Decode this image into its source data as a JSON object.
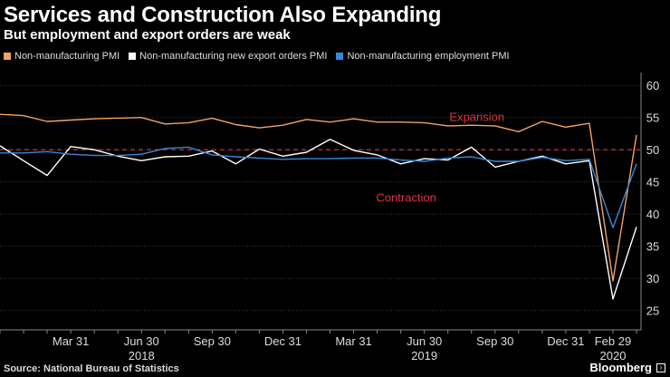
{
  "header": {
    "title": "Services and Construction Also Expanding",
    "subtitle": "But employment and export orders are weak"
  },
  "footer": {
    "source": "Source: National Bureau of Statistics",
    "brand": "Bloomberg"
  },
  "chart_data": {
    "type": "line",
    "title": "Services and Construction Also Expanding",
    "subtitle": "But employment and export orders are weak",
    "ylim": [
      22,
      62
    ],
    "yticks": [
      25,
      30,
      35,
      40,
      45,
      50,
      55,
      60
    ],
    "y_axis_position": "right",
    "grid": true,
    "legend_position": "top-left",
    "reference_line": {
      "y": 50,
      "color": "#e0343f",
      "style": "dashed"
    },
    "annotations": [
      {
        "text": "Expansion",
        "x": "2019-09",
        "y": 55,
        "color": "#e0343f"
      },
      {
        "text": "Contraction",
        "x": "2019-06",
        "y": 42.5,
        "color": "#e0343f"
      }
    ],
    "x": [
      "2017-12",
      "2018-01",
      "2018-02",
      "2018-03",
      "2018-04",
      "2018-05",
      "2018-06",
      "2018-07",
      "2018-08",
      "2018-09",
      "2018-10",
      "2018-11",
      "2018-12",
      "2019-01",
      "2019-02",
      "2019-03",
      "2019-04",
      "2019-05",
      "2019-06",
      "2019-07",
      "2019-08",
      "2019-09",
      "2019-10",
      "2019-11",
      "2019-12",
      "2020-01",
      "2020-02",
      "2020-03"
    ],
    "x_ticks": [
      {
        "x": "2018-03",
        "label": "Mar 31"
      },
      {
        "x": "2018-06",
        "label": "Jun 30"
      },
      {
        "x": "2018-09",
        "label": "Sep 30"
      },
      {
        "x": "2018-12",
        "label": "Dec 31"
      },
      {
        "x": "2019-03",
        "label": "Mar 31"
      },
      {
        "x": "2019-06",
        "label": "Jun 30"
      },
      {
        "x": "2019-09",
        "label": "Sep 30"
      },
      {
        "x": "2019-12",
        "label": "Dec 31"
      },
      {
        "x": "2020-02",
        "label": "Feb 29"
      }
    ],
    "year_labels": [
      {
        "x": "2018-06",
        "label": "2018"
      },
      {
        "x": "2019-06",
        "label": "2019"
      },
      {
        "x": "2020-02",
        "label": "2020"
      }
    ],
    "series": [
      {
        "name": "Non-manufacturing PMI",
        "color": "#f4a261",
        "values": [
          55.5,
          55.3,
          54.4,
          54.6,
          54.8,
          54.9,
          55.0,
          54.0,
          54.2,
          54.9,
          53.9,
          53.4,
          53.8,
          54.7,
          54.3,
          54.8,
          54.3,
          54.3,
          54.2,
          53.7,
          53.8,
          53.7,
          52.8,
          54.4,
          53.5,
          54.1,
          29.6,
          52.3
        ]
      },
      {
        "name": "Non-manufacturing new export orders PMI",
        "color": "#ffffff",
        "values": [
          50.6,
          48.3,
          46.0,
          50.5,
          50.0,
          49.0,
          48.3,
          48.9,
          49.0,
          49.8,
          47.8,
          50.1,
          49.0,
          49.6,
          51.6,
          49.9,
          49.2,
          47.8,
          48.6,
          48.4,
          50.4,
          47.3,
          48.2,
          49.0,
          47.8,
          48.3,
          26.8,
          38.0
        ]
      },
      {
        "name": "Non-manufacturing employment PMI",
        "color": "#3a87d9",
        "values": [
          49.5,
          49.5,
          49.7,
          49.3,
          49.1,
          49.1,
          49.3,
          50.2,
          50.4,
          49.2,
          48.9,
          48.7,
          48.5,
          48.6,
          48.6,
          48.7,
          48.7,
          48.4,
          48.2,
          48.7,
          48.9,
          48.2,
          48.2,
          48.8,
          48.3,
          48.5,
          37.9,
          47.8
        ]
      }
    ]
  }
}
